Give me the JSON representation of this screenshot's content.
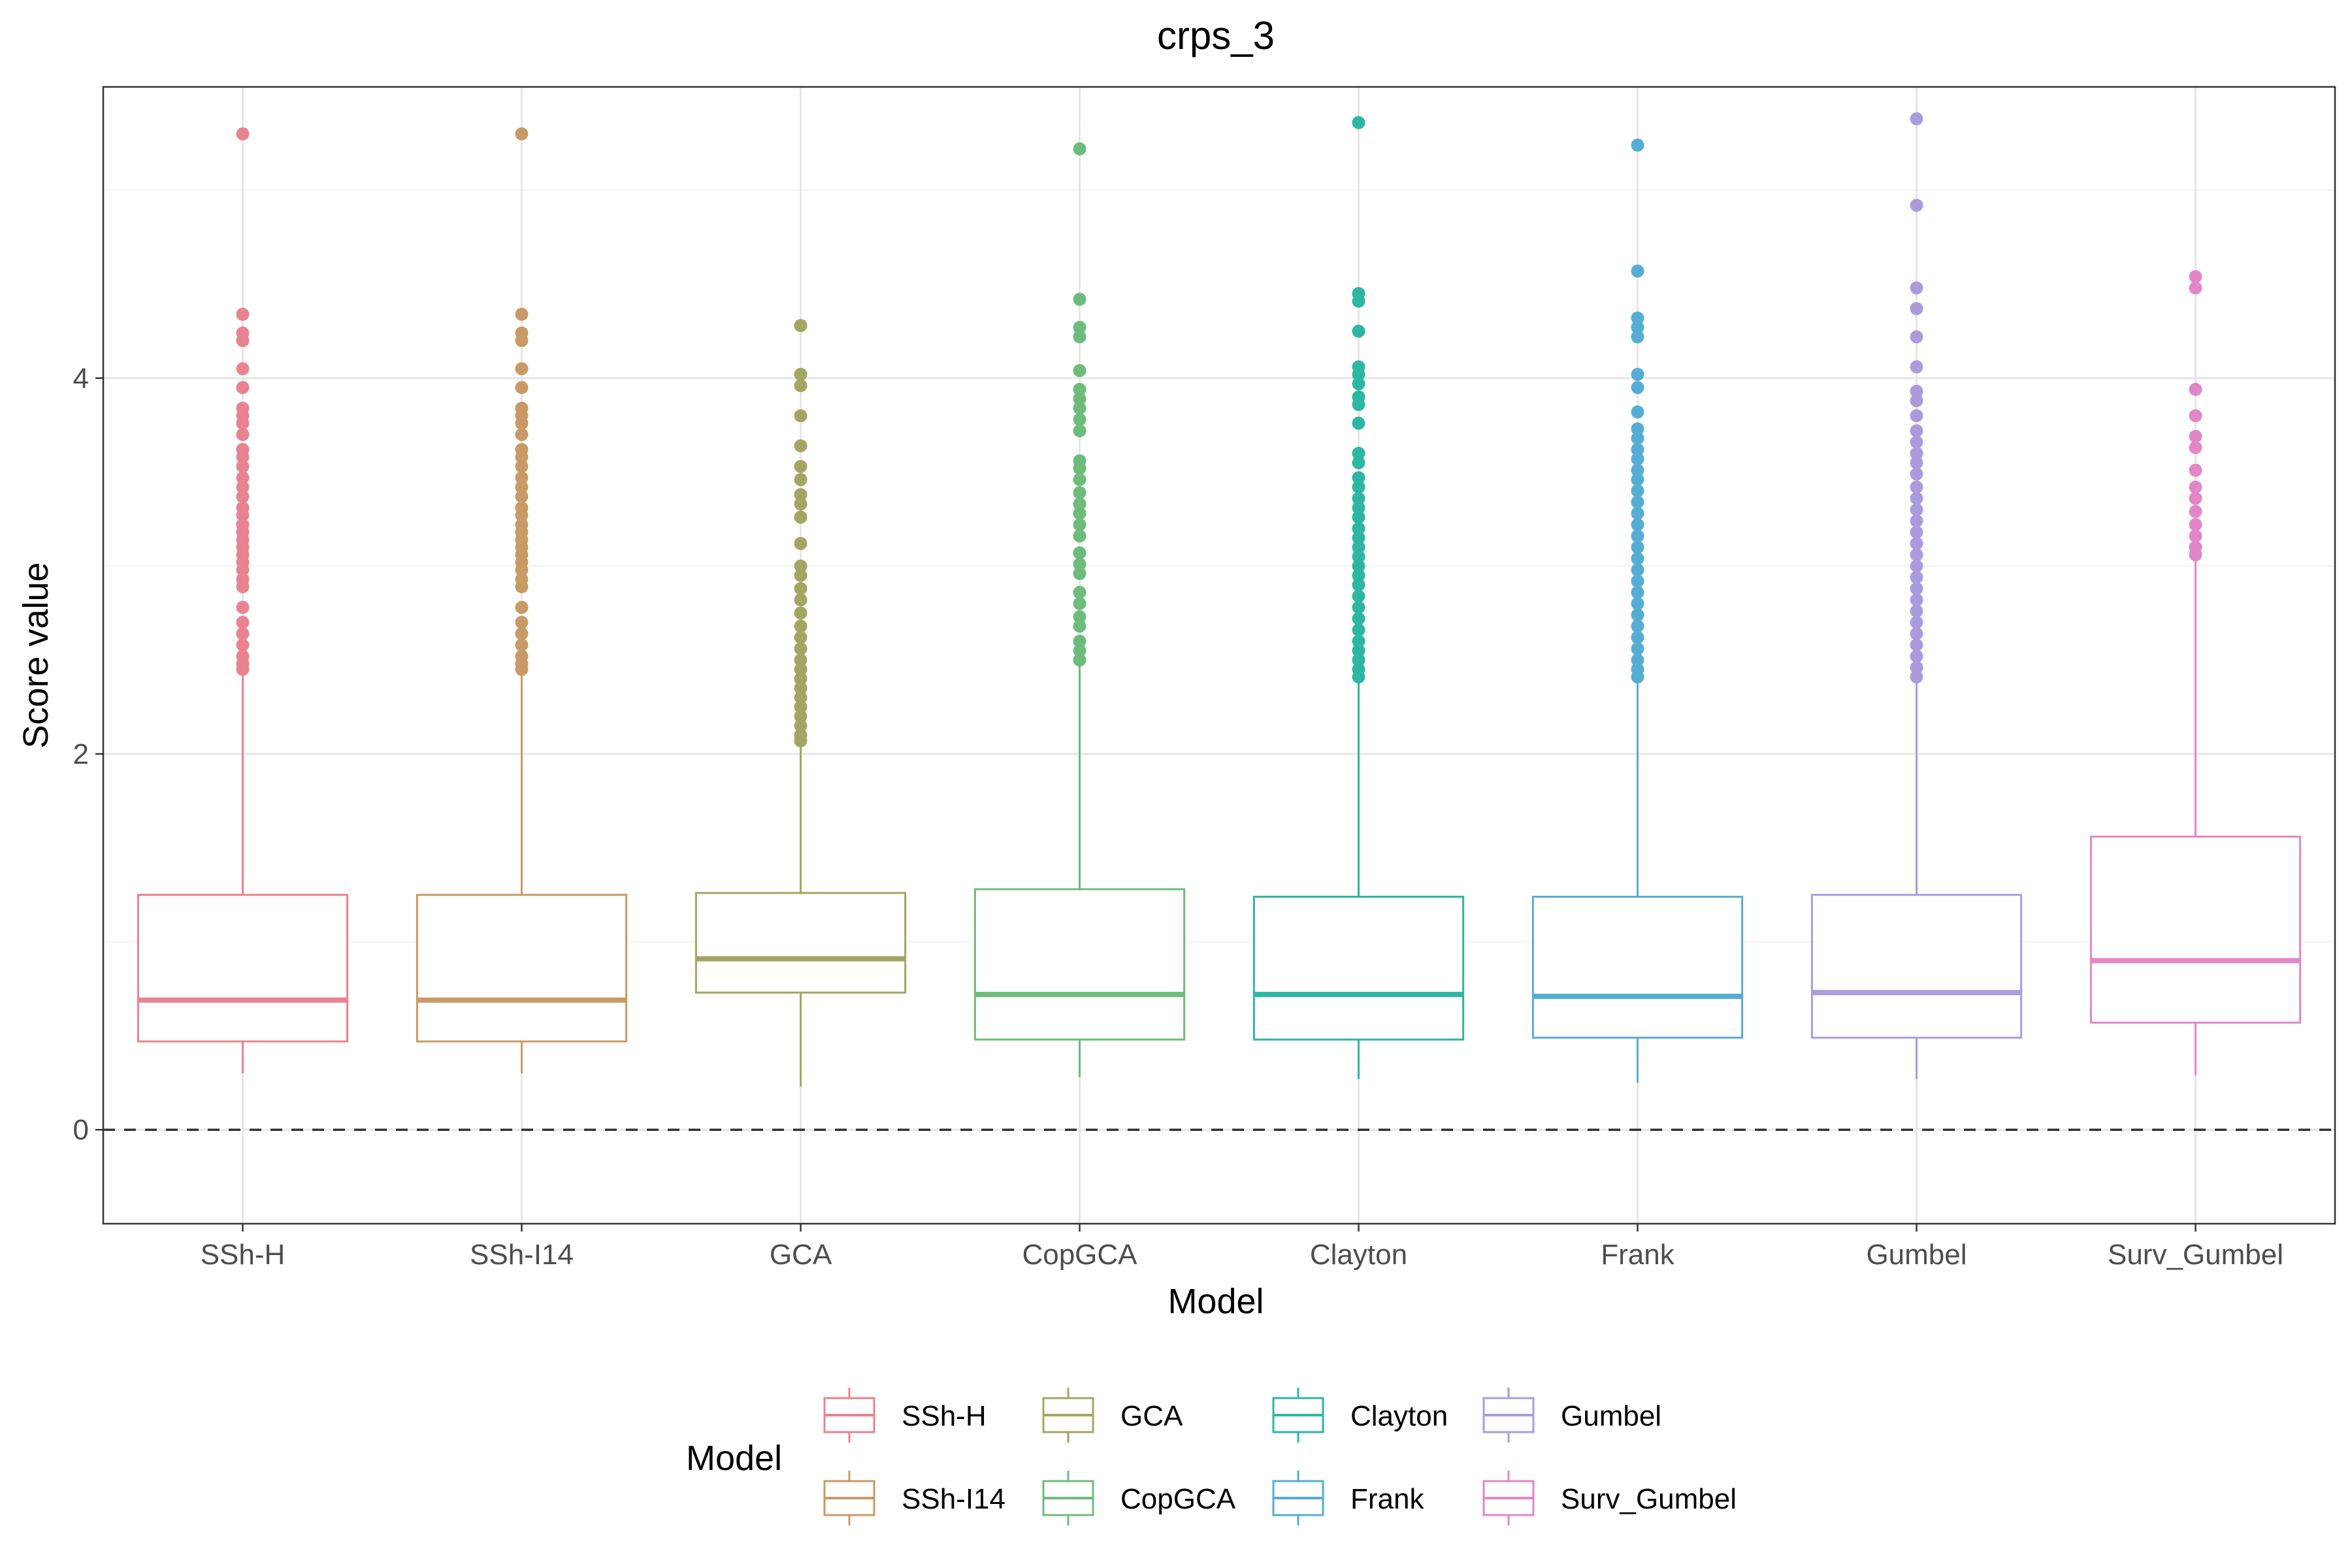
{
  "chart_data": {
    "type": "boxplot",
    "title": "crps_3",
    "xlabel": "Model",
    "ylabel": "Score value",
    "ylim": [
      -0.5,
      5.55
    ],
    "y_ticks": [
      0,
      2,
      4
    ],
    "y_tick_labels": [
      "0",
      "2",
      "4"
    ],
    "grid": true,
    "reference_line": {
      "y": 0,
      "style": "dashed"
    },
    "legend": {
      "title": "Model",
      "position": "bottom",
      "entries": [
        "SSh-H",
        "SSh-I14",
        "GCA",
        "CopGCA",
        "Clayton",
        "Frank",
        "Gumbel",
        "Surv_Gumbel"
      ]
    },
    "categories": [
      "SSh-H",
      "SSh-I14",
      "GCA",
      "CopGCA",
      "Clayton",
      "Frank",
      "Gumbel",
      "Surv_Gumbel"
    ],
    "series": [
      {
        "name": "SSh-H",
        "color": "#E8838F",
        "whisker_low": 0.3,
        "q1": 0.47,
        "median": 0.69,
        "q3": 1.25,
        "whisker_high": 2.43,
        "outliers": [
          5.3,
          4.34,
          4.24,
          4.2,
          4.05,
          3.95,
          3.84,
          3.8,
          3.76,
          3.7,
          3.62,
          3.58,
          3.53,
          3.47,
          3.42,
          3.37,
          3.31,
          3.27,
          3.22,
          3.18,
          3.14,
          3.1,
          3.06,
          3.02,
          2.98,
          2.93,
          2.89,
          2.78,
          2.7,
          2.64,
          2.58,
          2.52,
          2.48,
          2.45
        ]
      },
      {
        "name": "SSh-I14",
        "color": "#C99A65",
        "whisker_low": 0.3,
        "q1": 0.47,
        "median": 0.69,
        "q3": 1.25,
        "whisker_high": 2.43,
        "outliers": [
          5.3,
          4.34,
          4.24,
          4.2,
          4.05,
          3.95,
          3.84,
          3.8,
          3.76,
          3.7,
          3.62,
          3.58,
          3.53,
          3.47,
          3.42,
          3.37,
          3.31,
          3.27,
          3.22,
          3.18,
          3.14,
          3.1,
          3.06,
          3.02,
          2.98,
          2.93,
          2.89,
          2.78,
          2.7,
          2.64,
          2.58,
          2.52,
          2.48,
          2.45
        ]
      },
      {
        "name": "GCA",
        "color": "#A3A562",
        "whisker_low": 0.23,
        "q1": 0.73,
        "median": 0.91,
        "q3": 1.26,
        "whisker_high": 2.05,
        "outliers": [
          4.28,
          4.02,
          3.96,
          3.8,
          3.64,
          3.53,
          3.46,
          3.38,
          3.33,
          3.26,
          3.12,
          3.0,
          2.95,
          2.88,
          2.82,
          2.75,
          2.68,
          2.62,
          2.56,
          2.5,
          2.45,
          2.4,
          2.35,
          2.3,
          2.25,
          2.2,
          2.15,
          2.1,
          2.07
        ]
      },
      {
        "name": "CopGCA",
        "color": "#6DBC7C",
        "whisker_low": 0.28,
        "q1": 0.48,
        "median": 0.72,
        "q3": 1.28,
        "whisker_high": 2.48,
        "outliers": [
          5.22,
          4.42,
          4.27,
          4.22,
          4.04,
          3.94,
          3.89,
          3.84,
          3.78,
          3.72,
          3.56,
          3.52,
          3.46,
          3.39,
          3.33,
          3.28,
          3.22,
          3.16,
          3.07,
          3.01,
          2.96,
          2.86,
          2.8,
          2.73,
          2.68,
          2.6,
          2.55,
          2.5
        ]
      },
      {
        "name": "Clayton",
        "color": "#2DB6A4",
        "whisker_low": 0.27,
        "q1": 0.48,
        "median": 0.72,
        "q3": 1.24,
        "whisker_high": 2.4,
        "outliers": [
          5.36,
          4.45,
          4.41,
          4.25,
          4.06,
          4.02,
          3.97,
          3.9,
          3.86,
          3.76,
          3.6,
          3.55,
          3.47,
          3.42,
          3.36,
          3.31,
          3.26,
          3.2,
          3.15,
          3.1,
          3.05,
          3.0,
          2.95,
          2.9,
          2.84,
          2.78,
          2.72,
          2.66,
          2.6,
          2.55,
          2.5,
          2.45,
          2.41
        ]
      },
      {
        "name": "Frank",
        "color": "#55ADD4",
        "whisker_low": 0.25,
        "q1": 0.49,
        "median": 0.71,
        "q3": 1.24,
        "whisker_high": 2.4,
        "outliers": [
          5.24,
          4.57,
          4.32,
          4.27,
          4.22,
          4.02,
          3.95,
          3.82,
          3.73,
          3.68,
          3.62,
          3.57,
          3.51,
          3.46,
          3.4,
          3.34,
          3.28,
          3.22,
          3.16,
          3.1,
          3.04,
          2.98,
          2.92,
          2.86,
          2.8,
          2.74,
          2.68,
          2.62,
          2.56,
          2.5,
          2.45,
          2.41
        ]
      },
      {
        "name": "Gumbel",
        "color": "#AB9BDD",
        "whisker_low": 0.27,
        "q1": 0.49,
        "median": 0.73,
        "q3": 1.25,
        "whisker_high": 2.38,
        "outliers": [
          5.38,
          4.92,
          4.48,
          4.37,
          4.22,
          4.06,
          3.93,
          3.88,
          3.8,
          3.72,
          3.66,
          3.6,
          3.55,
          3.49,
          3.42,
          3.36,
          3.3,
          3.24,
          3.18,
          3.12,
          3.06,
          3.0,
          2.94,
          2.88,
          2.82,
          2.76,
          2.7,
          2.64,
          2.58,
          2.52,
          2.46,
          2.41
        ]
      },
      {
        "name": "Surv_Gumbel",
        "color": "#E187C7",
        "whisker_low": 0.29,
        "q1": 0.57,
        "median": 0.9,
        "q3": 1.56,
        "whisker_high": 3.03,
        "outliers": [
          4.54,
          4.48,
          3.94,
          3.8,
          3.69,
          3.63,
          3.51,
          3.42,
          3.36,
          3.29,
          3.22,
          3.16,
          3.1,
          3.06
        ]
      }
    ]
  }
}
